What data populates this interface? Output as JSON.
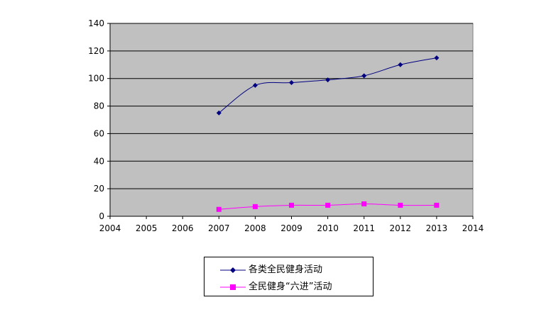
{
  "chart_data": {
    "type": "line",
    "title": "",
    "xlabel": "",
    "ylabel": "",
    "x": [
      2007,
      2008,
      2009,
      2010,
      2011,
      2012,
      2013
    ],
    "x_ticks": [
      "2004",
      "2005",
      "2006",
      "2007",
      "2008",
      "2009",
      "2010",
      "2011",
      "2012",
      "2013",
      "2014"
    ],
    "y_ticks": [
      "0",
      "20",
      "40",
      "60",
      "80",
      "100",
      "120",
      "140"
    ],
    "xlim": [
      2004,
      2014
    ],
    "ylim": [
      0,
      140
    ],
    "grid": true,
    "legend_position": "bottom",
    "plot_background": "#c0c0c0",
    "series": [
      {
        "name": "各类全民健身活动",
        "color": "#000080",
        "marker": "diamond",
        "values": [
          75,
          95,
          97,
          99,
          102,
          110,
          115
        ]
      },
      {
        "name": "全民健身“六进”活动",
        "color": "#ff00ff",
        "marker": "square",
        "values": [
          5,
          7,
          8,
          8,
          9,
          8,
          8
        ]
      }
    ]
  }
}
